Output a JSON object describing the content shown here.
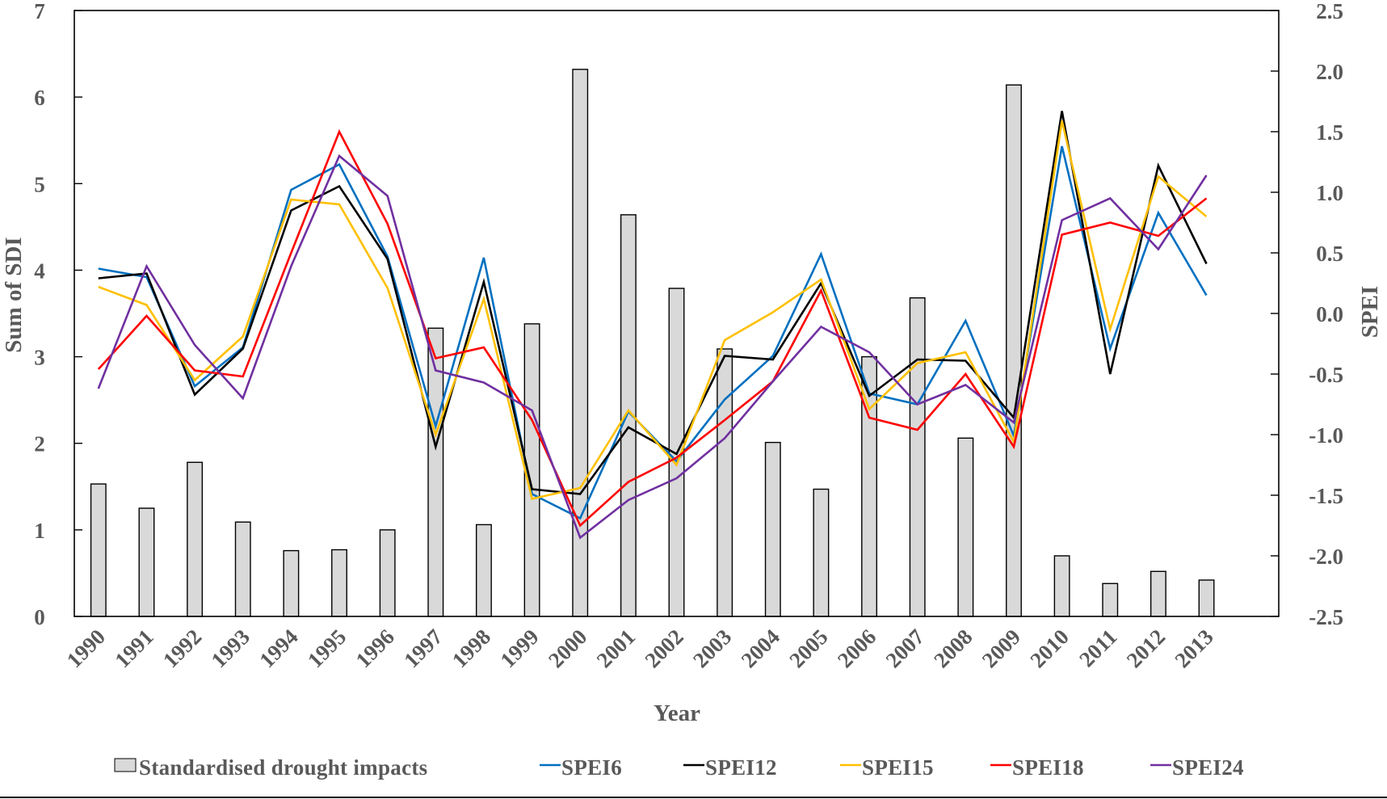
{
  "chart_data": {
    "type": "bar+line",
    "title": "",
    "xlabel": "Year",
    "ylabel_left": "Sum of SDI",
    "ylabel_right": "SPEI",
    "categories": [
      "1990",
      "1991",
      "1992",
      "1993",
      "1994",
      "1995",
      "1996",
      "1997",
      "1998",
      "1999",
      "2000",
      "2001",
      "2002",
      "2003",
      "2004",
      "2005",
      "2006",
      "2007",
      "2008",
      "2009",
      "2010",
      "2011",
      "2012",
      "2013"
    ],
    "ylim_left": [
      0,
      7
    ],
    "yticks_left": [
      "0",
      "1",
      "2",
      "3",
      "4",
      "5",
      "6",
      "7"
    ],
    "ylim_right": [
      -2.5,
      2.5
    ],
    "yticks_right": [
      "-2.5",
      "-2.0",
      "-1.5",
      "-1.0",
      "-0.5",
      "0.0",
      "0.5",
      "1.0",
      "1.5",
      "2.0",
      "2.5"
    ],
    "grid": false,
    "legend_position": "bottom",
    "bars": {
      "name": "Standardised drought impacts",
      "axis": "left",
      "color": "#d9d9d9",
      "values": [
        1.53,
        1.25,
        1.78,
        1.09,
        0.76,
        0.77,
        1.0,
        3.33,
        1.06,
        3.38,
        6.32,
        4.64,
        3.79,
        3.09,
        2.01,
        1.47,
        3.0,
        3.68,
        2.06,
        6.14,
        0.7,
        0.38,
        0.52,
        0.42
      ]
    },
    "series": [
      {
        "name": "SPEI6",
        "axis": "right",
        "color": "#0070c0",
        "values": [
          0.37,
          0.3,
          -0.6,
          -0.28,
          1.02,
          1.23,
          0.47,
          -0.93,
          0.46,
          -1.49,
          -1.69,
          -0.81,
          -1.22,
          -0.71,
          -0.35,
          0.49,
          -0.66,
          -0.75,
          -0.06,
          -1.01,
          1.38,
          -0.29,
          0.83,
          0.15
        ]
      },
      {
        "name": "SPEI12",
        "axis": "right",
        "color": "#000000",
        "values": [
          0.29,
          0.33,
          -0.67,
          -0.29,
          0.85,
          1.05,
          0.45,
          -1.1,
          0.26,
          -1.45,
          -1.49,
          -0.94,
          -1.16,
          -0.35,
          -0.38,
          0.25,
          -0.68,
          -0.38,
          -0.39,
          -0.86,
          1.67,
          -0.5,
          1.22,
          0.41
        ]
      },
      {
        "name": "SPEI15",
        "axis": "right",
        "color": "#ffc000",
        "values": [
          0.22,
          0.07,
          -0.55,
          -0.19,
          0.94,
          0.9,
          0.21,
          -1.0,
          0.12,
          -1.53,
          -1.44,
          -0.8,
          -1.25,
          -0.22,
          0.01,
          0.28,
          -0.79,
          -0.41,
          -0.32,
          -1.06,
          1.59,
          -0.13,
          1.13,
          0.8
        ]
      },
      {
        "name": "SPEI18",
        "axis": "right",
        "color": "#ff0000",
        "values": [
          -0.46,
          -0.02,
          -0.47,
          -0.52,
          0.5,
          1.5,
          0.74,
          -0.37,
          -0.28,
          -0.88,
          -1.75,
          -1.39,
          -1.19,
          -0.88,
          -0.56,
          0.19,
          -0.86,
          -0.96,
          -0.5,
          -1.1,
          0.65,
          0.75,
          0.64,
          0.95
        ]
      },
      {
        "name": "SPEI24",
        "axis": "right",
        "color": "#7030a0",
        "values": [
          -0.62,
          0.39,
          -0.26,
          -0.7,
          0.39,
          1.3,
          0.97,
          -0.47,
          -0.57,
          -0.8,
          -1.85,
          -1.54,
          -1.36,
          -1.03,
          -0.56,
          -0.11,
          -0.32,
          -0.75,
          -0.59,
          -0.9,
          0.77,
          0.95,
          0.53,
          1.14
        ]
      }
    ]
  }
}
